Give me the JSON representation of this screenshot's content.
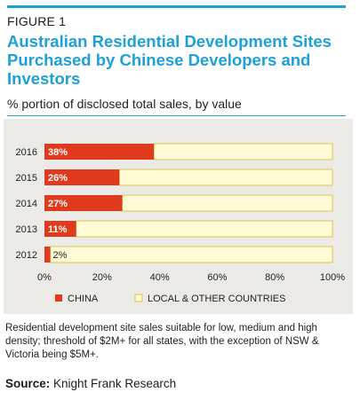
{
  "figure_label": "FIGURE 1",
  "title": "Australian Residential Development Sites Purchased by Chinese Developers and Investors",
  "subtitle": "% portion of disclosed total sales, by value",
  "chart_data": {
    "type": "bar",
    "orientation": "horizontal",
    "stacked": true,
    "categories": [
      "2016",
      "2015",
      "2014",
      "2013",
      "2012"
    ],
    "series": [
      {
        "name": "CHINA",
        "values": [
          38,
          26,
          27,
          11,
          2
        ],
        "color": "#e03a1e"
      },
      {
        "name": "LOCAL & OTHER COUNTRIES",
        "values": [
          62,
          74,
          73,
          89,
          98
        ],
        "color": "#fffbd6"
      }
    ],
    "data_labels": [
      "38%",
      "26%",
      "27%",
      "11%",
      "2%"
    ],
    "x_ticks": [
      "0%",
      "20%",
      "40%",
      "60%",
      "80%",
      "100%"
    ],
    "xlim": [
      0,
      100
    ],
    "grid": false,
    "legend_position": "bottom"
  },
  "note": "Residential development site sales suitable for low, medium and high density; threshold of $2M+ for all states, with the exception of NSW & Victoria being $5M+.",
  "source_label": "Source:",
  "source_text": "Knight Frank Research"
}
